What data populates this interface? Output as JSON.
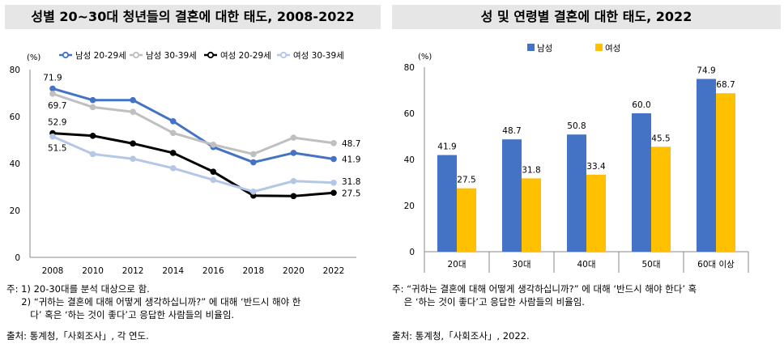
{
  "left": {
    "title": "성별 20~30대 청년들의 결혼에 대한 태도, 2008-2022",
    "unit": "(%)",
    "notes": [
      "주: 1) 20-30대를 분석 대상으로 함.",
      "     2) “귀하는 결혼에 대해 어떻게 생각하십니까?” 에 대해 ‘반드시 해야 한",
      "        다’ 혹은 ‘하는 것이 좋다’고 응답한 사람들의 비율임."
    ],
    "source": "출처: 통계청,「사회조사」, 각 연도."
  },
  "right": {
    "title": "성 및 연령별 결혼에 대한 태도, 2022",
    "unit": "(%)",
    "notes": [
      "주: “귀하는 결혼에 대해 어떻게 생각하십니까?” 에 대해 ‘반드시 해야 한다’ 혹",
      "    은 ‘하는 것이 좋다’고 응답한 사람들의 비율임."
    ],
    "source": "출처: 통계청,「사회조사」, 2022."
  },
  "chart_data": [
    {
      "type": "line",
      "title": "성별 20~30대 청년들의 결혼에 대한 태도, 2008-2022",
      "ylabel": "(%)",
      "ylim": [
        0,
        80
      ],
      "yticks": [
        0,
        20,
        40,
        60,
        80
      ],
      "x": [
        "2008",
        "2009",
        "2010",
        "2011",
        "2012",
        "2013",
        "2014",
        "2015",
        "2016",
        "2017",
        "2018",
        "2019",
        "2020",
        "2021",
        "2022"
      ],
      "xticks": [
        "2008",
        "2010",
        "2012",
        "2014",
        "2016",
        "2018",
        "2020",
        "2022"
      ],
      "legend_position": "top",
      "grid": false,
      "series": [
        {
          "name": "남성 20-29세",
          "color": "#4472c4",
          "values": [
            71.9,
            null,
            67.0,
            null,
            67.0,
            null,
            58.0,
            null,
            47.0,
            null,
            40.5,
            null,
            44.5,
            null,
            41.9
          ],
          "labels": {
            "0": "71.9",
            "14": "41.9"
          }
        },
        {
          "name": "남성 30-39세",
          "color": "#bfbfbf",
          "values": [
            69.7,
            null,
            64.0,
            null,
            62.0,
            null,
            53.0,
            null,
            48.0,
            null,
            44.0,
            null,
            51.0,
            null,
            48.7
          ],
          "labels": {
            "0": "69.7",
            "14": "48.7"
          }
        },
        {
          "name": "여성 20-29세",
          "color": "#000000",
          "values": [
            52.9,
            null,
            51.8,
            null,
            48.5,
            null,
            44.5,
            null,
            36.5,
            null,
            26.3,
            null,
            26.1,
            null,
            27.5
          ],
          "labels": {
            "0": "52.9",
            "14": "27.5"
          }
        },
        {
          "name": "여성 30-39세",
          "color": "#b4c7e7",
          "values": [
            51.5,
            null,
            44.0,
            null,
            42.0,
            null,
            38.0,
            null,
            33.0,
            null,
            28.0,
            null,
            32.5,
            null,
            31.8
          ],
          "labels": {
            "0": "51.5",
            "14": "31.8"
          }
        }
      ]
    },
    {
      "type": "bar",
      "title": "성 및 연령별 결혼에 대한 태도, 2022",
      "ylabel": "(%)",
      "ylim": [
        0,
        80
      ],
      "yticks": [
        0,
        20,
        40,
        60,
        80
      ],
      "categories": [
        "20대",
        "30대",
        "40대",
        "50대",
        "60대 이상"
      ],
      "legend_position": "top",
      "grid": false,
      "series": [
        {
          "name": "남성",
          "color": "#4472c4",
          "values": [
            41.9,
            48.7,
            50.8,
            60.0,
            74.9
          ],
          "labels": [
            "41.9",
            "48.7",
            "50.8",
            "60.0",
            "74.9"
          ]
        },
        {
          "name": "여성",
          "color": "#ffc000",
          "values": [
            27.5,
            31.8,
            33.4,
            45.5,
            68.7
          ],
          "labels": [
            "27.5",
            "31.8",
            "33.4",
            "45.5",
            "68.7"
          ]
        }
      ]
    }
  ]
}
